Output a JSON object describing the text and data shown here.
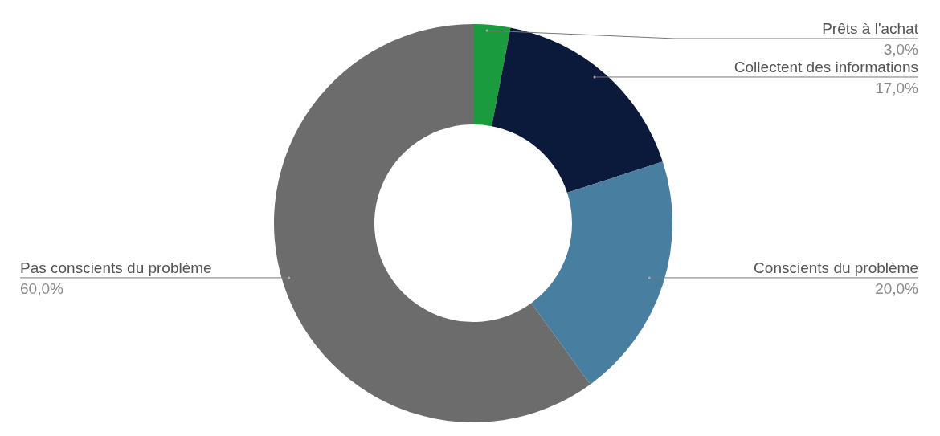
{
  "chart_data": {
    "type": "donut",
    "categories": [
      "Prêts à l'achat",
      "Collectent des informations",
      "Conscients du problème",
      "Pas conscients du problème"
    ],
    "values": [
      3,
      17,
      20,
      60
    ],
    "colors": [
      "#1a9c3e",
      "#0b1a3b",
      "#487e9f",
      "#6c6c6c"
    ],
    "value_labels": [
      "3,0%",
      "17,0%",
      "20,0%",
      "60,0%"
    ]
  }
}
